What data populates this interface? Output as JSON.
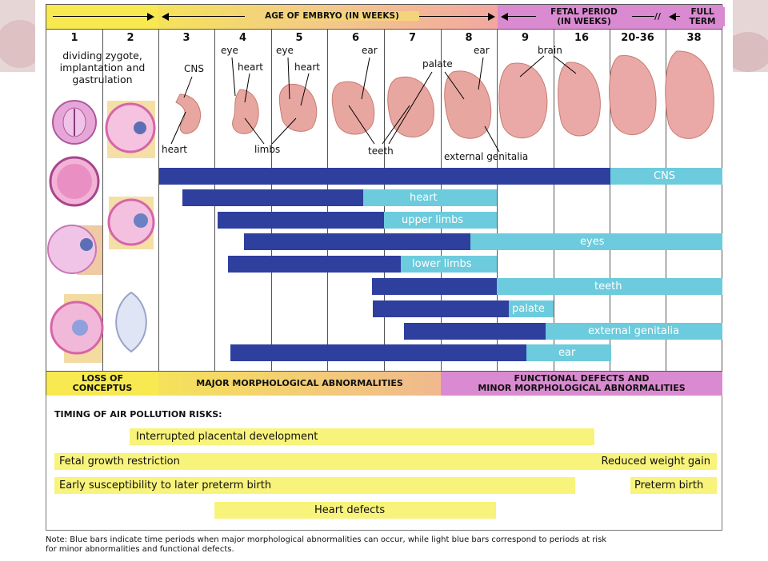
{
  "header": {
    "left": "",
    "embryo": "AGE OF EMBRYO (IN WEEKS)",
    "fetal_line1": "FETAL PERIOD",
    "fetal_line2": "(IN WEEKS)",
    "full_term_line1": "FULL",
    "full_term_line2": "TERM",
    "break_mark": "//"
  },
  "weeks": [
    "1",
    "2",
    "3",
    "4",
    "5",
    "6",
    "7",
    "8",
    "9",
    "16",
    "20-36",
    "38"
  ],
  "stage_text": [
    "dividing zygote,",
    "implantation and",
    "gastrulation"
  ],
  "image_labels": {
    "cns": "CNS",
    "eye4": "eye",
    "heart4": "heart",
    "eye5": "eye",
    "heart5": "heart",
    "ear6": "ear",
    "palate": "palate",
    "ear8": "ear",
    "brain": "brain",
    "heart3": "heart",
    "limbs": "limbs",
    "teeth": "teeth",
    "genitalia": "external genitalia"
  },
  "bars": [
    {
      "label": "CNS",
      "dark_start": 0,
      "dark_end": 1,
      "light_end": 1
    },
    {
      "label": "heart",
      "dark_start": 0,
      "dark_end": 1,
      "light_end": 1
    },
    {
      "label": "upper limbs",
      "dark_start": 0,
      "dark_end": 1,
      "light_end": 1
    },
    {
      "label": "eyes",
      "dark_start": 0,
      "dark_end": 1,
      "light_end": 1
    },
    {
      "label": "lower limbs",
      "dark_start": 0,
      "dark_end": 1,
      "light_end": 1
    },
    {
      "label": "teeth",
      "dark_start": 0,
      "dark_end": 1,
      "light_end": 1
    },
    {
      "label": "palate",
      "dark_start": 0,
      "dark_end": 1,
      "light_end": 1
    },
    {
      "label": "external genitalia",
      "dark_start": 0,
      "dark_end": 1,
      "light_end": 1
    },
    {
      "label": "ear",
      "dark_start": 0,
      "dark_end": 1,
      "light_end": 1
    }
  ],
  "footer": {
    "loss_line1": "LOSS OF",
    "loss_line2": "CONCEPTUS",
    "major": "MAJOR MORPHOLOGICAL ABNORMALITIES",
    "functional_line1": "FUNCTIONAL DEFECTS AND",
    "functional_line2": "MINOR MORPHOLOGICAL ABNORMALITIES"
  },
  "risks": {
    "title": "TIMING OF AIR POLLUTION RISKS:",
    "placental": "Interrupted placental development",
    "growth": "Fetal growth restriction",
    "weight": "Reduced weight gain",
    "preterm_early": "Early susceptibility to later preterm birth",
    "preterm": "Preterm birth",
    "heart_defects": "Heart defects"
  },
  "note_line1": "Note: Blue bars indicate time periods when major morphological abnormalities can occur, while light blue bars correspond to periods at risk",
  "note_line2": "for minor abnormalities and functional defects.",
  "colors": {
    "dark_bar": "#2e3f9e",
    "light_bar": "#6ccbdc",
    "yellow": "#f7e94f",
    "risk_yellow": "#f8f37a",
    "fetal_purple": "#d98ad0",
    "embryo_pink": "#e8a6a0",
    "cell_pink": "#e07ab8"
  }
}
